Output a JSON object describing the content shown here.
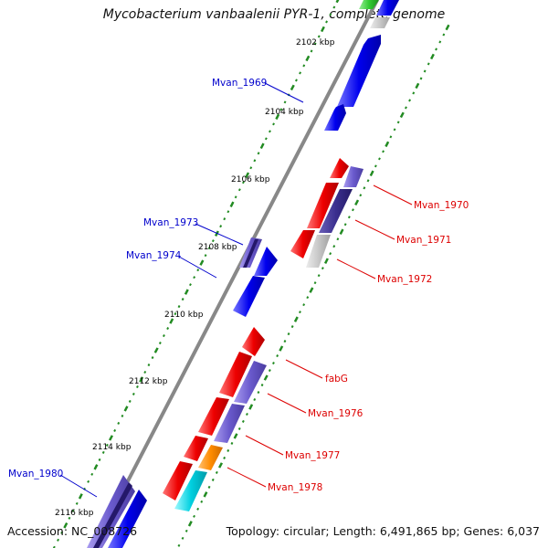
{
  "title": "Mycobacterium vanbaalenii PYR-1, complete genome",
  "accession": "Accession: NC_008726",
  "summary": "Topology: circular; Length: 6,491,865 bp; Genes: 6,037",
  "colors": {
    "backbone": "#888888",
    "tick": "#228b22",
    "scale_text": "#000000",
    "forward_label": "#0000cc",
    "reverse_label": "#dd0000"
  },
  "scale_labels": [
    "2102 kbp",
    "2104 kbp",
    "2106 kbp",
    "2108 kbp",
    "2110 kbp",
    "2112 kbp",
    "2114 kbp",
    "2116 kbp"
  ],
  "forward_genes": [
    "Mvan_1969",
    "Mvan_1973",
    "Mvan_1974",
    "Mvan_1980"
  ],
  "reverse_genes": [
    "Mvan_1970",
    "Mvan_1971",
    "Mvan_1972",
    "fabG",
    "Mvan_1976",
    "Mvan_1977",
    "Mvan_1978"
  ],
  "legend_colors": {
    "gene_blue": "#0000ee",
    "gene_red": "#ee0000",
    "gene_purple": "#6a5acd",
    "gene_darkpurple": "#3b2f8f",
    "gene_gray": "#c8c8c8",
    "gene_orange": "#ff8c00",
    "gene_cyan": "#00d0e0",
    "gene_green": "#33cc33"
  }
}
